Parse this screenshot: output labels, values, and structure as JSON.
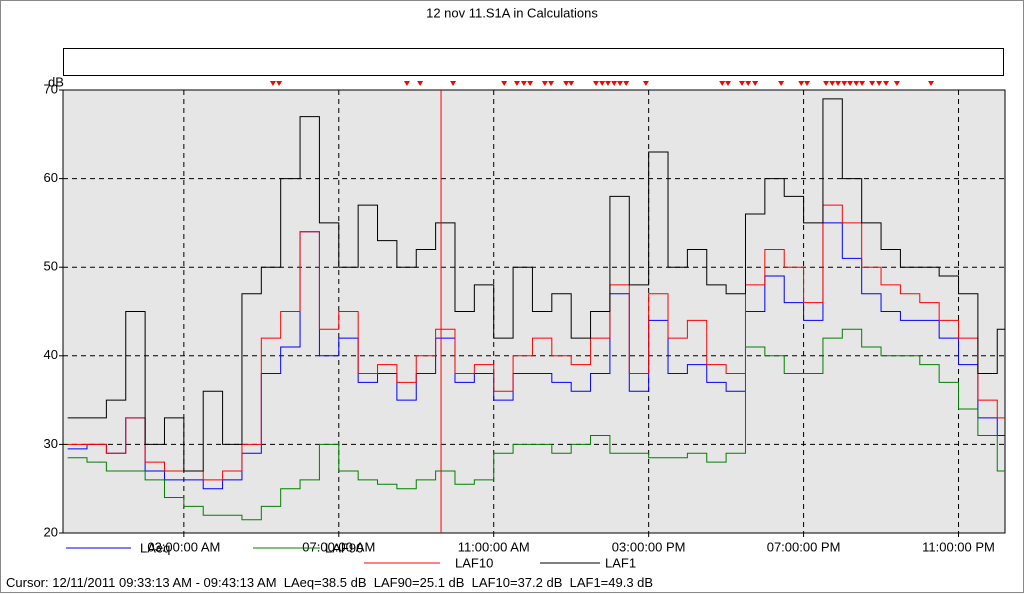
{
  "chart_data": {
    "type": "line",
    "title": "12 nov 11.S1A in Calculations",
    "y_label": "dB",
    "xlim": [
      -0.12,
      24.2
    ],
    "ylim": [
      20,
      70
    ],
    "xticks": [
      {
        "value": 3,
        "label": "03:00:00 AM"
      },
      {
        "value": 7,
        "label": "07:00:00 AM"
      },
      {
        "value": 11,
        "label": "11:00:00 AM"
      },
      {
        "value": 15,
        "label": "03:00:00 PM"
      },
      {
        "value": 19,
        "label": "07:00:00 PM"
      },
      {
        "value": 23,
        "label": "11:00:00 PM"
      }
    ],
    "yticks": [
      20,
      30,
      40,
      50,
      60,
      70
    ],
    "grid": true,
    "step": true,
    "cursor_x": 9.64,
    "cursor_color": "#ff0000",
    "event_markers": [
      5.3,
      5.46,
      8.76,
      9.1,
      9.95,
      11.27,
      11.6,
      11.78,
      11.94,
      12.32,
      12.48,
      12.87,
      13.0,
      13.64,
      13.8,
      13.95,
      14.11,
      14.26,
      14.42,
      14.93,
      16.9,
      17.05,
      17.41,
      17.57,
      17.75,
      18.42,
      18.94,
      19.09,
      19.58,
      19.74,
      19.89,
      20.05,
      20.2,
      20.36,
      20.51,
      20.77,
      20.95,
      21.13,
      21.41,
      22.29
    ],
    "x": [
      0,
      0.5,
      1,
      1.5,
      2,
      2.5,
      3,
      3.5,
      4,
      4.5,
      5,
      5.5,
      6,
      6.5,
      7,
      7.5,
      8,
      8.5,
      9,
      9.5,
      10,
      10.5,
      11,
      11.5,
      12,
      12.5,
      13,
      13.5,
      14,
      14.5,
      15,
      15.5,
      16,
      16.5,
      17,
      17.5,
      18,
      18.5,
      19,
      19.5,
      20,
      20.5,
      21,
      21.5,
      22,
      22.5,
      23,
      23.5,
      24
    ],
    "series": [
      {
        "name": "LAeq",
        "color": "#0000ff",
        "values": [
          29.5,
          30,
          29,
          33,
          27,
          26,
          26,
          25,
          26,
          29,
          38,
          41,
          54,
          40,
          42,
          37,
          38,
          35,
          38,
          42,
          37,
          38,
          35,
          38,
          38,
          37,
          36,
          38,
          47,
          36,
          44,
          38,
          39,
          37,
          36,
          45,
          49,
          46,
          44,
          55,
          51,
          47,
          45,
          44,
          44,
          42,
          39,
          33,
          31
        ]
      },
      {
        "name": "LAF90",
        "color": "#008000",
        "values": [
          28.5,
          28,
          27,
          27,
          26,
          24,
          23,
          22,
          22,
          21.5,
          23,
          25,
          26,
          30,
          27,
          26,
          25.5,
          25,
          26,
          27,
          25.5,
          26,
          29,
          30,
          30,
          29,
          30,
          31,
          29,
          29,
          28.5,
          28.5,
          29,
          28,
          29,
          41,
          40,
          38,
          38,
          42,
          43,
          41,
          40,
          40,
          39,
          37,
          34,
          31,
          27
        ]
      },
      {
        "name": "LAF10",
        "color": "#ff0000",
        "values": [
          30,
          30,
          29,
          33,
          28,
          27,
          27,
          26,
          27,
          30,
          42,
          45,
          54,
          43,
          45,
          38,
          39,
          37,
          40,
          43,
          38,
          39,
          36,
          40,
          42,
          40,
          39,
          42,
          48,
          38,
          47,
          42,
          44,
          39,
          38,
          48,
          52,
          50,
          46,
          57,
          55,
          50,
          48,
          47,
          46,
          44,
          42,
          35,
          33
        ]
      },
      {
        "name": "LAF1",
        "color": "#000000",
        "values": [
          33,
          33,
          35,
          45,
          30,
          33,
          27,
          36,
          30,
          47,
          50,
          60,
          67,
          55,
          50,
          57,
          53,
          50,
          52,
          55,
          45,
          48,
          42,
          50,
          45,
          47,
          42,
          45,
          58,
          48,
          63,
          50,
          52,
          48,
          47,
          56,
          60,
          58,
          55,
          69,
          60,
          55,
          52,
          50,
          50,
          49,
          47,
          38,
          43
        ]
      }
    ],
    "status": "Cursor: 12/11/2011 09:33:13 AM - 09:43:13 AM  LAeq=38.5 dB  LAF90=25.1 dB  LAF10=37.2 dB  LAF1=49.3 dB"
  }
}
